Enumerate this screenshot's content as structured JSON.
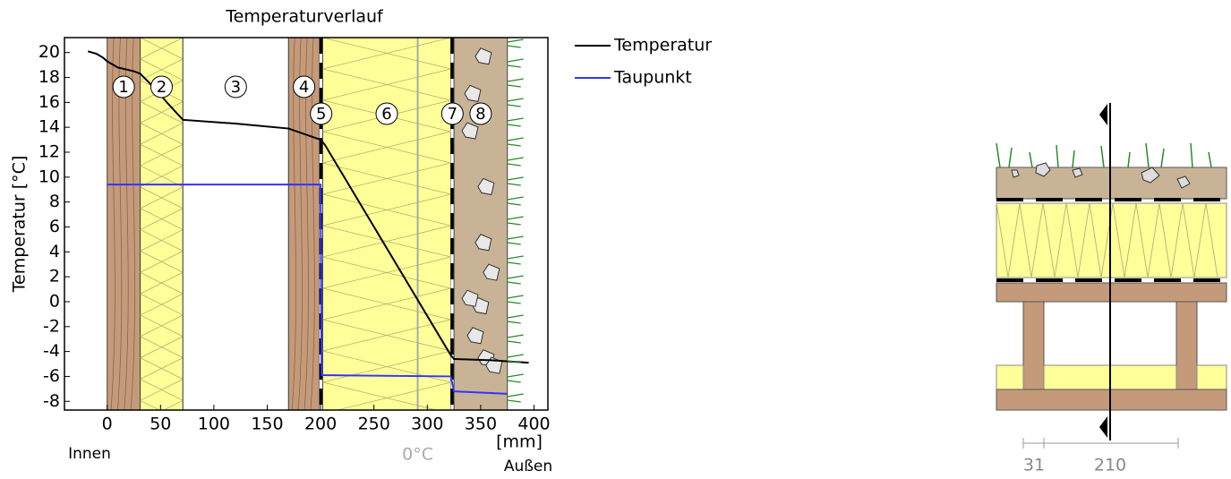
{
  "chart_data": {
    "type": "line",
    "title": "Temperaturverlauf",
    "y_label": "Temperatur [°C]",
    "x_label": "[mm]",
    "inside_label": "Innen",
    "outside_label": "Außen",
    "xlim": [
      -40,
      413
    ],
    "xticks": [
      0,
      50,
      100,
      150,
      200,
      250,
      300,
      350,
      400
    ],
    "ylim": [
      -8.7,
      21.2
    ],
    "yticks": [
      -8,
      -6,
      -4,
      -2,
      0,
      2,
      4,
      6,
      8,
      10,
      12,
      14,
      16,
      18,
      20
    ],
    "grid": false,
    "legend": "right",
    "reference": {
      "label": "0°C",
      "x": 291,
      "color": "#aaaaaa"
    },
    "layers": [
      {
        "label": "1",
        "from": 0,
        "to": 31,
        "color": "#c49a7a"
      },
      {
        "label": "2",
        "from": 31,
        "to": 71,
        "color": "#ffff99"
      },
      {
        "label": "3",
        "from": 71,
        "to": 170,
        "color": "#ffffff"
      },
      {
        "label": "4",
        "from": 170,
        "to": 199,
        "color": "#c49a7a"
      },
      {
        "label": "5",
        "from": 199,
        "to": 202,
        "color": "#000000"
      },
      {
        "label": "6",
        "from": 202,
        "to": 322,
        "color": "#ffff99"
      },
      {
        "label": "7",
        "from": 322,
        "to": 325,
        "color": "#000000"
      },
      {
        "label": "8",
        "from": 325,
        "to": 375,
        "color": "#c8b396"
      }
    ],
    "series": [
      {
        "name": "Temperatur",
        "color": "#000000",
        "x": [
          -18,
          -10,
          -4,
          0,
          10,
          25,
          31,
          45,
          57,
          71,
          120,
          170,
          200,
          204,
          322,
          325,
          360,
          395
        ],
        "values": [
          20.1,
          19.9,
          19.6,
          19.3,
          18.8,
          18.5,
          18.3,
          17.1,
          15.9,
          14.6,
          14.3,
          13.9,
          13.0,
          12.6,
          -4.3,
          -4.6,
          -4.7,
          -4.9
        ]
      },
      {
        "name": "Taupunkt",
        "color": "#3333ff",
        "x": [
          0,
          200,
          201,
          322,
          325,
          375
        ],
        "values": [
          9.4,
          9.4,
          -5.9,
          -6.0,
          -7.2,
          -7.4
        ]
      }
    ]
  },
  "section": {
    "dimensions": [
      31,
      210
    ]
  }
}
